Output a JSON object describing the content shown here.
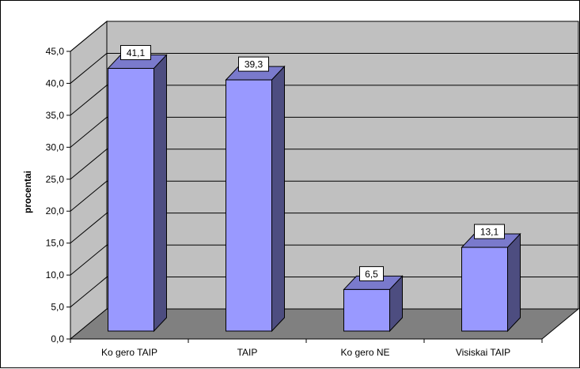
{
  "chart_data": {
    "type": "bar",
    "style": "3d-column",
    "categories": [
      "Ko gero TAIP",
      "TAIP",
      "Ko gero NE",
      "Visiskai TAIP"
    ],
    "values": [
      41.1,
      39.3,
      6.5,
      13.1
    ],
    "value_labels": [
      "41,1",
      "39,3",
      "6,5",
      "13,1"
    ],
    "ylabel": "procentai",
    "ylim": [
      0,
      45
    ],
    "yticks": [
      "0,0",
      "5,0",
      "10,0",
      "15,0",
      "20,0",
      "25,0",
      "30,0",
      "35,0",
      "40,0",
      "45,0"
    ],
    "grid": true,
    "legend": "none",
    "colors": {
      "bar_front": "#9999ff",
      "bar_side": "#4d4d80",
      "bar_top": "#7a7acc",
      "wall": "#c0c0c0",
      "floor": "#808080",
      "gridline": "#000000"
    }
  }
}
